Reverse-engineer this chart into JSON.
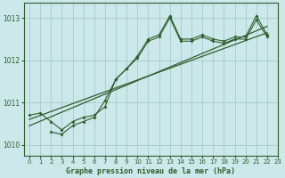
{
  "title": "Graphe pression niveau de la mer (hPa)",
  "background_color": "#cce8ea",
  "grid_color": "#aacfcf",
  "line_color": "#2d5e2d",
  "xlim": [
    -0.5,
    23
  ],
  "ylim": [
    1009.75,
    1013.35
  ],
  "yticks": [
    1010,
    1011,
    1012,
    1013
  ],
  "xticks": [
    0,
    1,
    2,
    3,
    4,
    5,
    6,
    7,
    8,
    9,
    10,
    11,
    12,
    13,
    14,
    15,
    16,
    17,
    18,
    19,
    20,
    21,
    22,
    23
  ],
  "series1_x": [
    0,
    1,
    2,
    3,
    4,
    5,
    6,
    7,
    8,
    9,
    10,
    11,
    12,
    13,
    14,
    15,
    16,
    17,
    18,
    19,
    20,
    21,
    22
  ],
  "series1_y": [
    1010.7,
    1010.75,
    1010.55,
    1010.35,
    1010.55,
    1010.65,
    1010.7,
    1010.9,
    1011.55,
    1011.8,
    1012.1,
    1012.5,
    1012.6,
    1013.05,
    1012.5,
    1012.5,
    1012.6,
    1012.5,
    1012.45,
    1012.55,
    1012.55,
    1013.05,
    1012.6
  ],
  "series2_x": [
    2,
    3,
    4,
    5,
    6,
    7,
    8,
    9,
    10,
    11,
    12,
    13,
    14,
    15,
    16,
    17,
    18,
    19,
    20,
    21,
    22
  ],
  "series2_y": [
    1010.3,
    1010.25,
    1010.45,
    1010.55,
    1010.65,
    1011.05,
    1011.55,
    1011.8,
    1012.05,
    1012.45,
    1012.55,
    1013.0,
    1012.45,
    1012.45,
    1012.55,
    1012.45,
    1012.4,
    1012.5,
    1012.5,
    1012.95,
    1012.55
  ],
  "trend1_x": [
    0,
    22
  ],
  "trend1_y": [
    1010.6,
    1012.65
  ],
  "trend2_x": [
    0,
    22
  ],
  "trend2_y": [
    1010.45,
    1012.8
  ]
}
